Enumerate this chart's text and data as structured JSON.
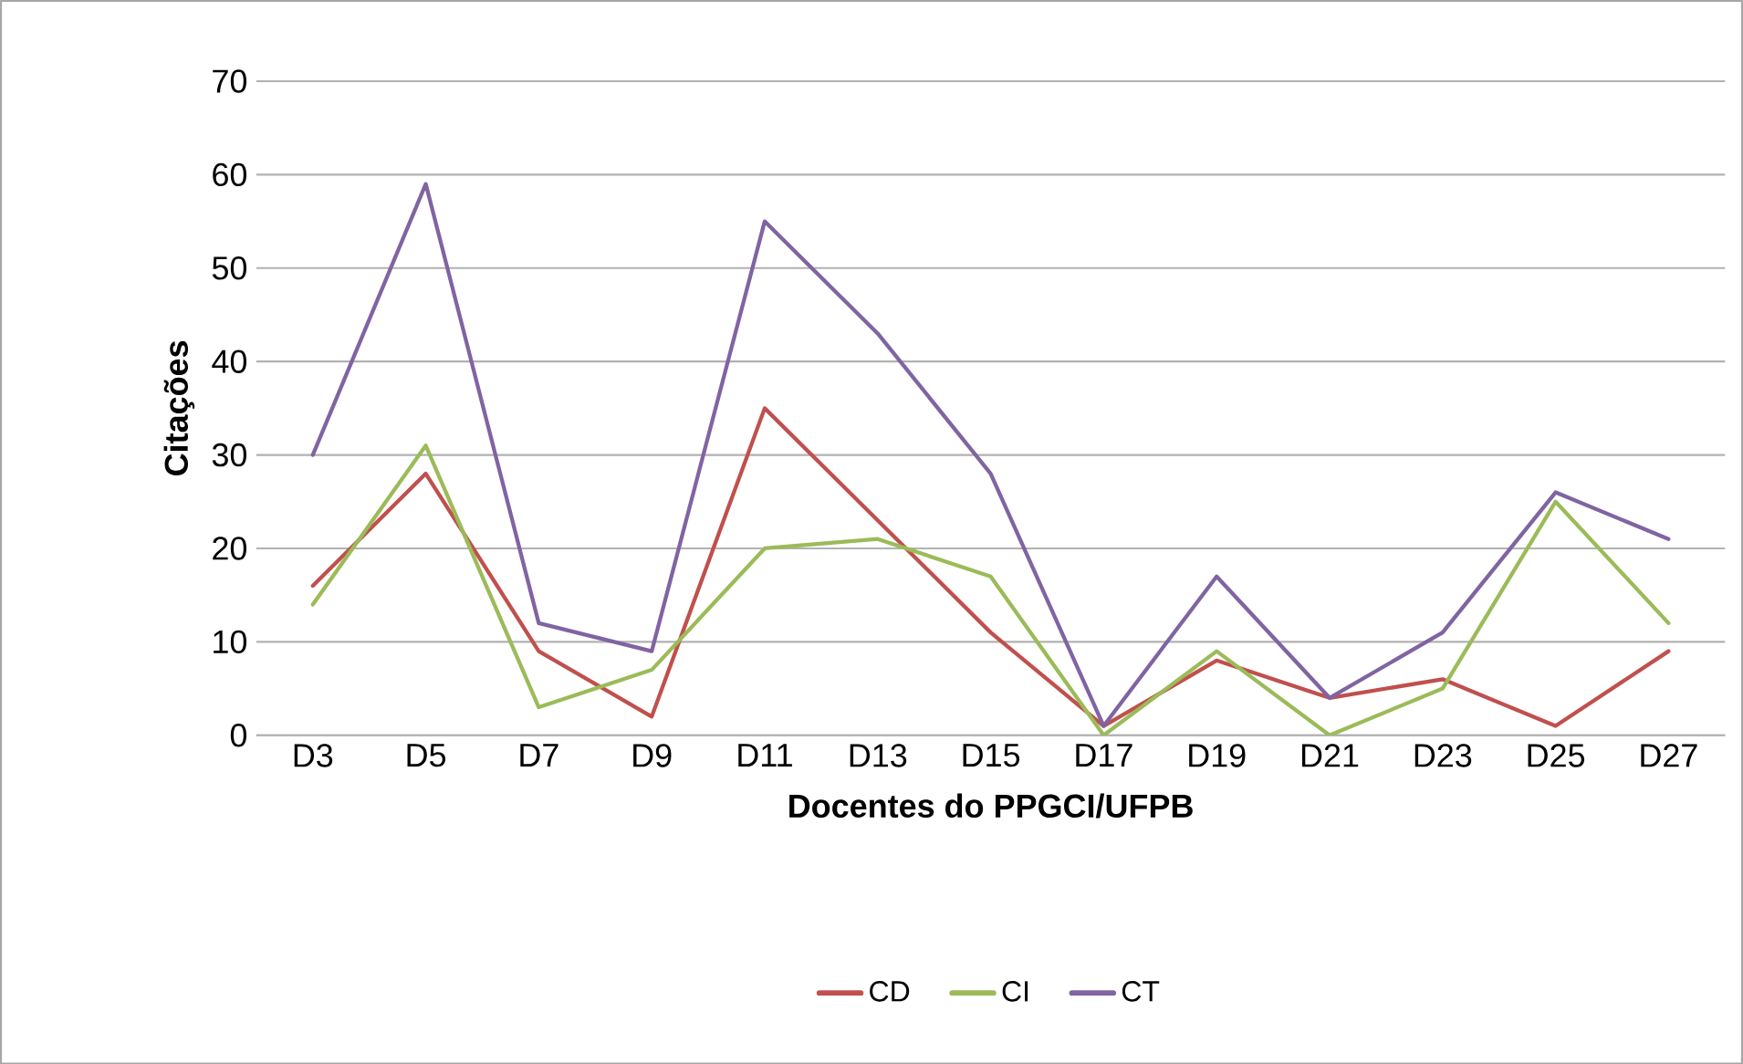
{
  "chart_data": {
    "type": "line",
    "xlabel": "Docentes do PPGCI/UFPB",
    "ylabel": "Citações",
    "categories": [
      "D3",
      "D5",
      "D7",
      "D9",
      "D11",
      "D13",
      "D15",
      "D17",
      "D19",
      "D21",
      "D23",
      "D25",
      "D27"
    ],
    "series": [
      {
        "name": "CD",
        "color": "#c0504d",
        "values": [
          16,
          28,
          9,
          2,
          35,
          23,
          11,
          1,
          8,
          4,
          6,
          1,
          9
        ]
      },
      {
        "name": "CI",
        "color": "#9bbb59",
        "values": [
          14,
          31,
          3,
          7,
          20,
          21,
          17,
          0,
          9,
          0,
          5,
          25,
          12
        ]
      },
      {
        "name": "CT",
        "color": "#8064a2",
        "values": [
          30,
          59,
          12,
          9,
          55,
          43,
          28,
          1,
          17,
          4,
          11,
          26,
          21
        ]
      }
    ],
    "ylim": [
      0,
      70
    ],
    "yticks": [
      0,
      10,
      20,
      30,
      40,
      50,
      60,
      70
    ],
    "grid": "y",
    "legend": "bottom",
    "marker": "none",
    "line_style": "solid"
  }
}
